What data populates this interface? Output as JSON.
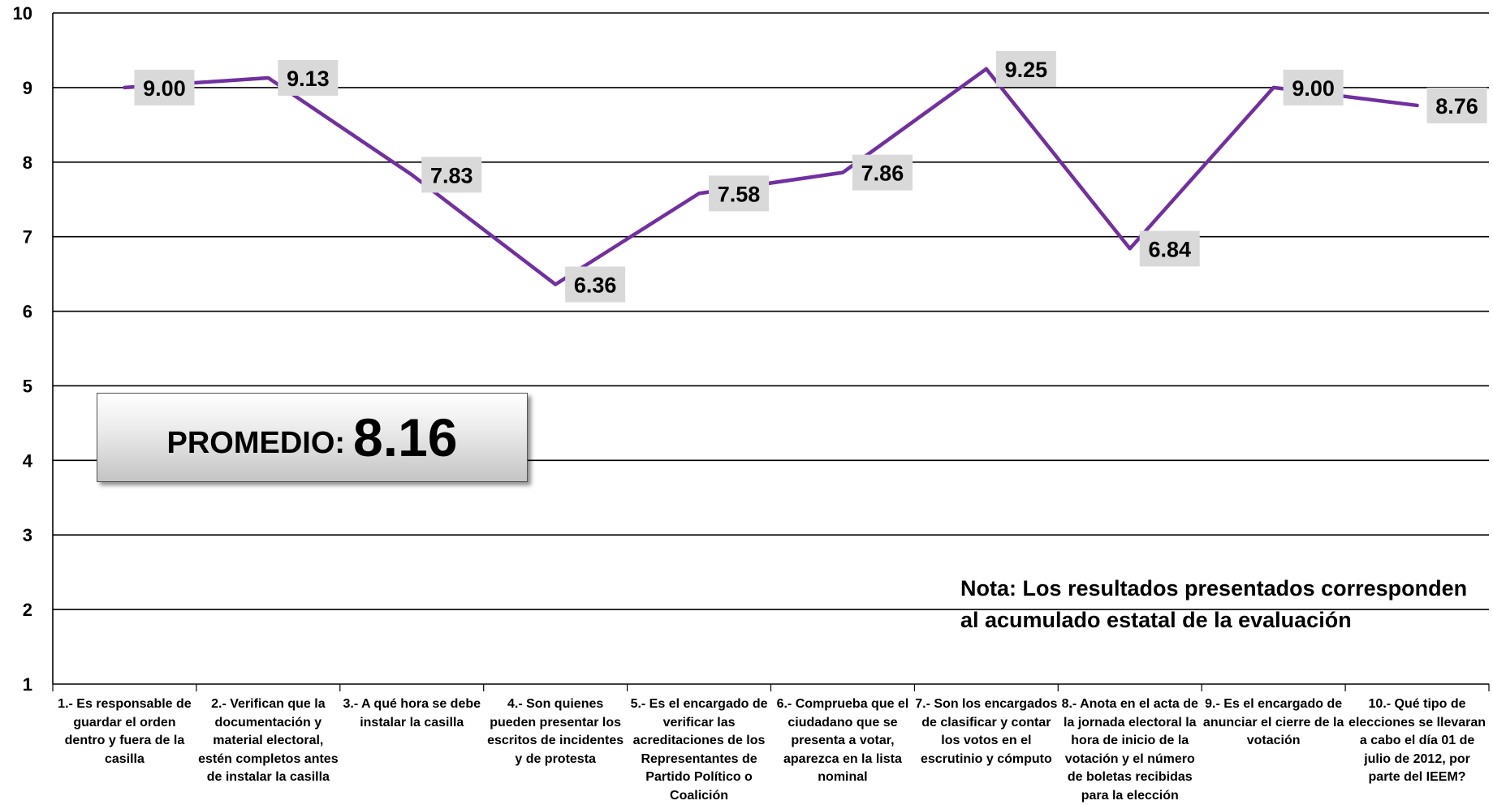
{
  "chart_data": {
    "type": "line",
    "categories": [
      "1.- Es responsable de guardar el orden dentro y fuera de la casilla",
      "2.- Verifican que la documentación y material electoral, estén completos antes de instalar la casilla",
      "3.- A qué hora se debe instalar la casilla",
      "4.- Son quienes pueden presentar los escritos de incidentes y de protesta",
      "5.- Es el encargado de verificar las acreditaciones de los Representantes de Partido Político o Coalición",
      "6.- Comprueba que el ciudadano que se presenta a votar, aparezca en la lista nominal",
      "7.- Son los encargados de clasificar y contar los votos en el escrutinio y cómputo",
      "8.- Anota en el acta de la jornada electoral la hora de inicio de la votación y el número de boletas recibidas para la elección",
      "9.- Es el encargado de anunciar el cierre de la votación",
      "10.- Qué tipo de elecciones se llevaran a cabo el día 01 de julio de 2012, por parte del IEEM?"
    ],
    "category_lines": [
      [
        "1.- Es responsable de",
        "guardar el orden",
        "dentro y fuera de la",
        "casilla"
      ],
      [
        "2.- Verifican que la",
        "documentación y",
        "material electoral,",
        "estén completos antes",
        "de instalar la casilla"
      ],
      [
        "3.- A qué hora se debe",
        "instalar la casilla"
      ],
      [
        "4.- Son quienes",
        "pueden presentar los",
        "escritos de incidentes",
        "y de protesta"
      ],
      [
        "5.- Es el encargado de",
        "verificar las",
        "acreditaciones de los",
        "Representantes de",
        "Partido Político o",
        "Coalición"
      ],
      [
        "6.- Comprueba que el",
        "ciudadano que se",
        "presenta a votar,",
        "aparezca en la lista",
        "nominal"
      ],
      [
        "7.- Son los encargados",
        "de clasificar y contar",
        "los votos en el",
        "escrutinio y cómputo"
      ],
      [
        "8.- Anota en el acta de",
        "la jornada electoral la",
        "hora de inicio de la",
        "votación y el número",
        "de boletas recibidas",
        "para la elección"
      ],
      [
        "9.- Es el encargado de",
        "anunciar el cierre de la",
        "votación"
      ],
      [
        "10.- Qué tipo de",
        "elecciones se llevaran",
        "a cabo el día 01 de",
        "julio de 2012, por",
        "parte del IEEM?"
      ]
    ],
    "values": [
      9.0,
      9.13,
      7.83,
      6.36,
      7.58,
      7.86,
      9.25,
      6.84,
      9.0,
      8.76
    ],
    "value_labels": [
      "9.00",
      "9.13",
      "7.83",
      "6.36",
      "7.58",
      "7.86",
      "9.25",
      "6.84",
      "9.00",
      "8.76"
    ],
    "yticks": [
      "1",
      "2",
      "3",
      "4",
      "5",
      "6",
      "7",
      "8",
      "9",
      "10"
    ],
    "ylim": [
      1,
      10
    ],
    "grid": true,
    "line_color": "#7030a0",
    "label_box_color": "#d9d9d9",
    "title": "",
    "xlabel": "",
    "ylabel": ""
  },
  "promedio": {
    "label": "PROMEDIO:",
    "value": "8.16"
  },
  "nota": {
    "line1": "Nota: Los resultados presentados corresponden",
    "line2": "al acumulado estatal de la evaluación"
  }
}
